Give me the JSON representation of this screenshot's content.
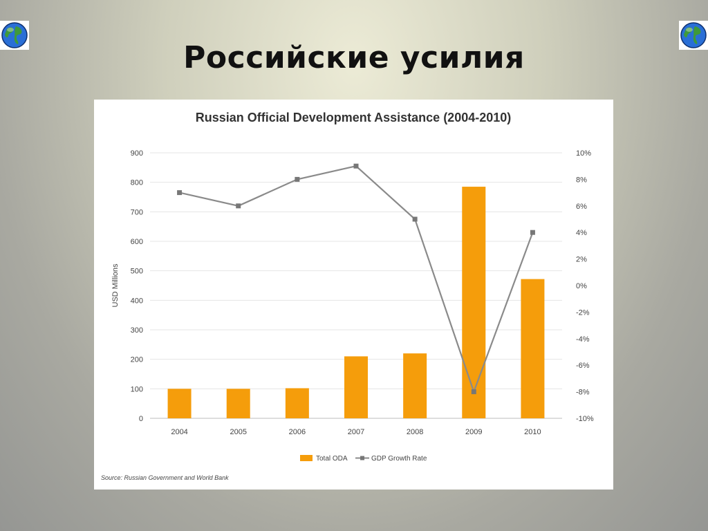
{
  "slide": {
    "title": "Российские усилия"
  },
  "icons": {
    "left": "globe-icon",
    "right": "globe-icon"
  },
  "colors": {
    "bar": "#f59d0b",
    "line": "#8a8a8a",
    "grid": "#e4e4e4"
  },
  "chart_data": {
    "type": "bar",
    "title": "Russian Official Development Assistance (2004-2010)",
    "ylabel": "USD Millions",
    "ylim": [
      0,
      900
    ],
    "y_ticks": [
      "0",
      "100",
      "200",
      "300",
      "400",
      "500",
      "600",
      "700",
      "800",
      "900"
    ],
    "y2_ticks": [
      "-10%",
      "-8%",
      "-6%",
      "-4%",
      "-2%",
      "0%",
      "2%",
      "4%",
      "6%",
      "8%",
      "10%"
    ],
    "y2lim": [
      -10,
      10
    ],
    "categories": [
      "2004",
      "2005",
      "2006",
      "2007",
      "2008",
      "2009",
      "2010"
    ],
    "series": [
      {
        "name": "Total ODA",
        "type": "bar",
        "axis": "left",
        "values": [
          100,
          100,
          102,
          210,
          220,
          785,
          472
        ]
      },
      {
        "name": "GDP Growth Rate",
        "type": "line",
        "axis": "right",
        "values": [
          7,
          6,
          8,
          9,
          5,
          -8,
          4
        ]
      }
    ],
    "legend_position": "bottom-center",
    "grid": true,
    "source": "Source: Russian Government and World Bank"
  }
}
